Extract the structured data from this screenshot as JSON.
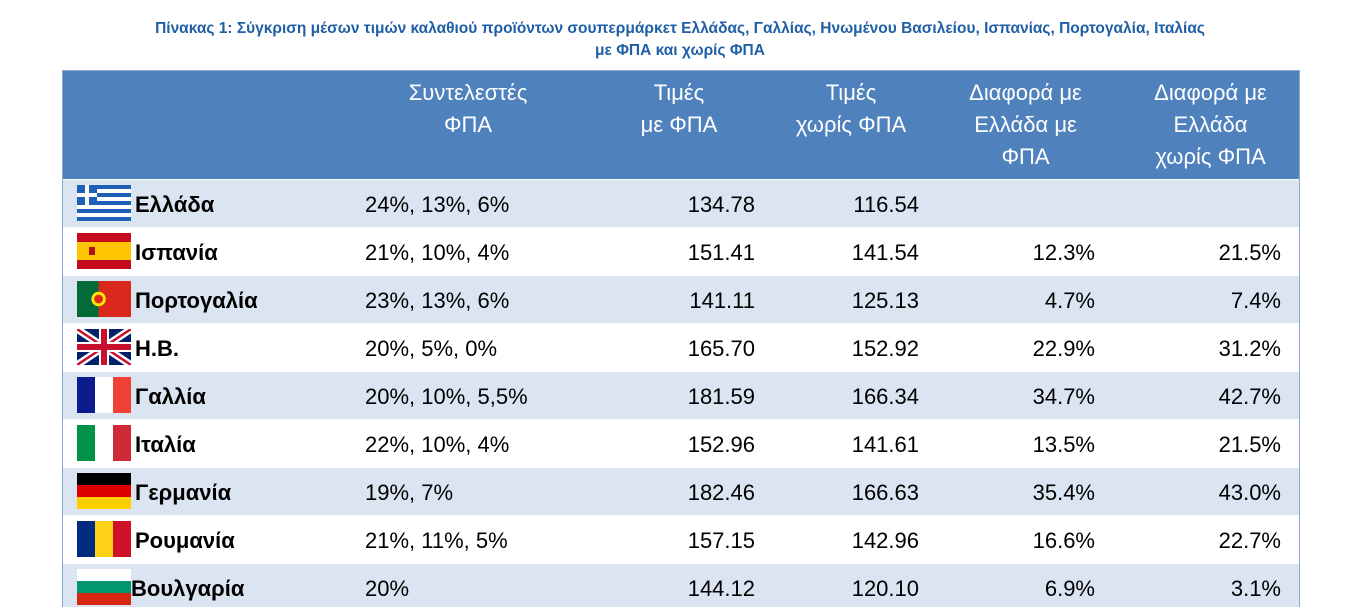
{
  "caption": {
    "line1": "Πίνακας 1: Σύγκριση μέσων τιμών καλαθιού προϊόντων σουπερμάρκετ Ελλάδας, Γαλλίας, Ηνωμένου Βασιλείου, Ισπανίας, Πορτογαλία, Ιταλίας",
    "line2": "με ΦΠΑ και χωρίς ΦΠΑ"
  },
  "header": {
    "vat_l1": "Συντελεστές",
    "vat_l2": "ΦΠΑ",
    "pv_l1": "Τιμές",
    "pv_l2": "με ΦΠΑ",
    "pn_l1": "Τιμές",
    "pn_l2": "χωρίς ΦΠΑ",
    "dv_l1": "Διαφορά με",
    "dv_l2": "Ελλάδα με",
    "dv_l3": "ΦΠΑ",
    "dn_l1": "Διαφορά με",
    "dn_l2": "Ελλάδα",
    "dn_l3": "χωρίς ΦΠΑ"
  },
  "colors": {
    "header_bg": "#4f81bd",
    "stripe": "#dbe4f1",
    "caption": "#1f5fa6"
  },
  "rows": [
    {
      "flag": "greece-flag-icon",
      "country": "Ελλάδα",
      "vat": "24%, 13%, 6%",
      "price_vat": "134.78",
      "price_novat": "116.54",
      "diff_vat": "",
      "diff_novat": ""
    },
    {
      "flag": "spain-flag-icon",
      "country": "Ισπανία",
      "vat": "21%, 10%, 4%",
      "price_vat": "151.41",
      "price_novat": "141.54",
      "diff_vat": "12.3%",
      "diff_novat": "21.5%"
    },
    {
      "flag": "portugal-flag-icon",
      "country": "Πορτογαλία",
      "vat": "23%, 13%, 6%",
      "price_vat": "141.11",
      "price_novat": "125.13",
      "diff_vat": "4.7%",
      "diff_novat": "7.4%"
    },
    {
      "flag": "uk-flag-icon",
      "country": "Η.Β.",
      "vat": "20%, 5%, 0%",
      "price_vat": "165.70",
      "price_novat": "152.92",
      "diff_vat": "22.9%",
      "diff_novat": "31.2%"
    },
    {
      "flag": "france-flag-icon",
      "country": "Γαλλία",
      "vat": "20%, 10%, 5,5%",
      "price_vat": "181.59",
      "price_novat": "166.34",
      "diff_vat": "34.7%",
      "diff_novat": "42.7%"
    },
    {
      "flag": "italy-flag-icon",
      "country": "Ιταλία",
      "vat": "22%, 10%, 4%",
      "price_vat": "152.96",
      "price_novat": "141.61",
      "diff_vat": "13.5%",
      "diff_novat": "21.5%"
    },
    {
      "flag": "germany-flag-icon",
      "country": "Γερμανία",
      "vat": "19%, 7%",
      "price_vat": "182.46",
      "price_novat": "166.63",
      "diff_vat": "35.4%",
      "diff_novat": "43.0%"
    },
    {
      "flag": "romania-flag-icon",
      "country": "Ρουμανία",
      "vat": "21%, 11%, 5%",
      "price_vat": "157.15",
      "price_novat": "142.96",
      "diff_vat": "16.6%",
      "diff_novat": "22.7%"
    },
    {
      "flag": "bulgaria-flag-icon",
      "country": "Βουλγαρία",
      "vat": "20%",
      "price_vat": "144.12",
      "price_novat": "120.10",
      "diff_vat": "6.9%",
      "diff_novat": "3.1%"
    }
  ]
}
